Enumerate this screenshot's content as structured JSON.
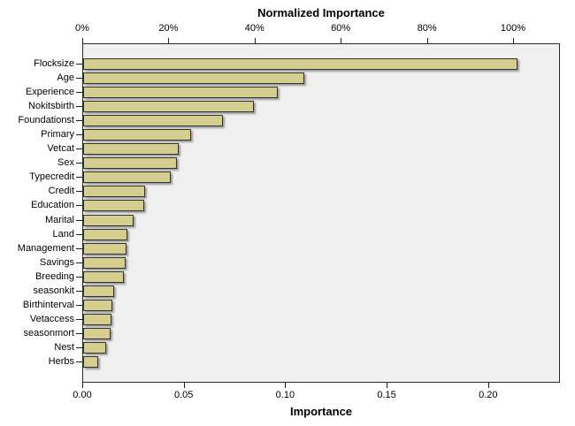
{
  "title": "Normalized Importance",
  "top_axis": {
    "ticks": [
      {
        "label": "0%",
        "value": 0
      },
      {
        "label": "20%",
        "value": 20
      },
      {
        "label": "40%",
        "value": 40
      },
      {
        "label": "60%",
        "value": 60
      },
      {
        "label": "80%",
        "value": 80
      },
      {
        "label": "100%",
        "value": 100
      }
    ]
  },
  "bottom_axis": {
    "label": "Importance",
    "ticks": [
      {
        "label": "0.00",
        "value": 0.0
      },
      {
        "label": "0.05",
        "value": 0.05
      },
      {
        "label": "0.10",
        "value": 0.1
      },
      {
        "label": "0.15",
        "value": 0.15
      },
      {
        "label": "0.20",
        "value": 0.2
      }
    ]
  },
  "chart_data": {
    "type": "bar",
    "orientation": "horizontal",
    "title": "Normalized Importance",
    "xlabel": "Importance",
    "xlabel_top": "Normalized Importance (%)",
    "ylabel": "",
    "legend": null,
    "grid": false,
    "sort": "descending",
    "xlim": [
      0,
      0.2355
    ],
    "top_axis_percent_ticks": [
      0,
      20,
      40,
      60,
      80,
      100
    ],
    "bottom_axis_ticks": [
      0.0,
      0.05,
      0.1,
      0.15,
      0.2
    ],
    "categories": [
      "Flocksize",
      "Age",
      "Experience",
      "Nokitsbirth",
      "Foundationst",
      "Primary",
      "Vetcat",
      "Sex",
      "Typecredit",
      "Credit",
      "Education",
      "Marital",
      "Land",
      "Management",
      "Savings",
      "Breeding",
      "seasonkit",
      "Birthinterval",
      "Vetaccess",
      "seasonmort",
      "Nest",
      "Herbs"
    ],
    "values": [
      0.214,
      0.109,
      0.096,
      0.084,
      0.069,
      0.053,
      0.047,
      0.046,
      0.043,
      0.0305,
      0.03,
      0.025,
      0.0218,
      0.0213,
      0.0208,
      0.02,
      0.0153,
      0.0145,
      0.014,
      0.0135,
      0.0114,
      0.0074
    ],
    "normalized_percent": [
      100,
      50.9,
      44.9,
      39.3,
      32.2,
      24.8,
      22.0,
      21.5,
      20.1,
      14.3,
      14.0,
      11.7,
      10.2,
      10.0,
      9.7,
      9.3,
      7.1,
      6.8,
      6.5,
      6.3,
      5.3,
      3.5
    ],
    "colors": {
      "bar_fill": "#d5ce8f",
      "bar_border": "#35342c",
      "bar_shadow": "#8a8a8a",
      "plot_background": "#f0f0f0",
      "frame_border": "#2a2a2a",
      "text": "#000000",
      "page_background": "#ffffff"
    }
  }
}
